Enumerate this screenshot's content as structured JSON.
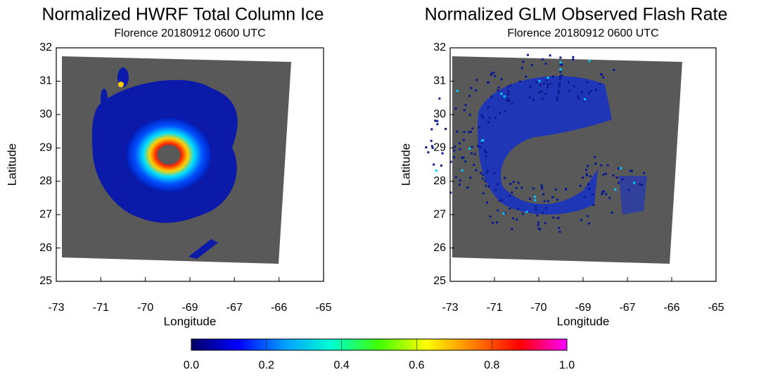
{
  "chart_data": [
    {
      "type": "map",
      "title": "Normalized HWRF Total Column Ice",
      "subtitle": "Florence 20180912 0600 UTC",
      "xlabel": "Longitude",
      "ylabel": "Latitude",
      "xcategories": [
        "-73",
        "-71",
        "-70",
        "-69",
        "-67",
        "-66",
        "-65"
      ],
      "ylim": [
        25,
        32
      ],
      "yticks": [
        25,
        26,
        27,
        28,
        29,
        30,
        31,
        32
      ],
      "background": "#595959"
    },
    {
      "type": "map",
      "title": "Normalized GLM Observed Flash Rate",
      "subtitle": "Florence 20180912 0600 UTC",
      "xlabel": "Longitude",
      "ylabel": "Latitude",
      "xcategories": [
        "-73",
        "-71",
        "-70",
        "-69",
        "-67",
        "-66",
        "-65"
      ],
      "ylim": [
        25,
        32
      ],
      "yticks": [
        25,
        26,
        27,
        28,
        29,
        30,
        31,
        32
      ],
      "background": "#595959"
    }
  ],
  "colorbar": {
    "lim": [
      0,
      1
    ],
    "ticks": [
      {
        "value": 0,
        "label": "0.0"
      },
      {
        "value": 0.2,
        "label": "0.2"
      },
      {
        "value": 0.4,
        "label": "0.4"
      },
      {
        "value": 0.6,
        "label": "0.6"
      },
      {
        "value": 0.8,
        "label": "0.8"
      },
      {
        "value": 1,
        "label": "1.0"
      }
    ],
    "colors": [
      "#000066",
      "#0000ff",
      "#00a0ff",
      "#00ffd0",
      "#40ff00",
      "#ffff00",
      "#ff8000",
      "#ff0000",
      "#ff00ff"
    ]
  }
}
